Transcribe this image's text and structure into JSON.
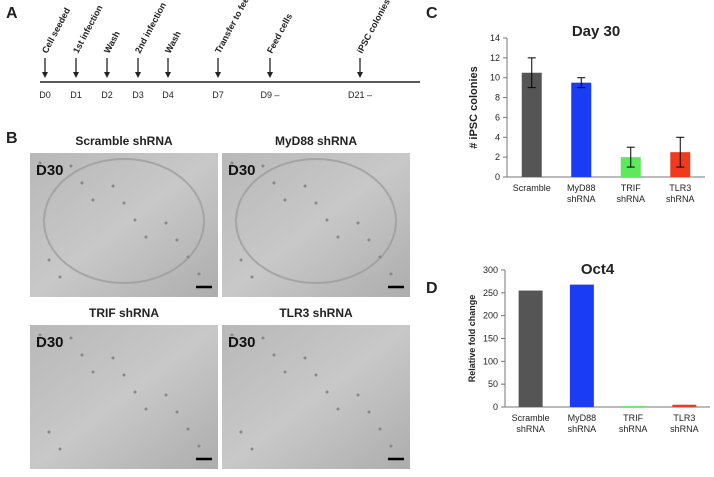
{
  "panels": {
    "a": "A",
    "b": "B",
    "c": "C",
    "d": "D"
  },
  "timeline": {
    "steps": [
      {
        "day": "D0",
        "event": "Cell seeded"
      },
      {
        "day": "D1",
        "event": "1st infection"
      },
      {
        "day": "D2",
        "event": "Wash"
      },
      {
        "day": "D3",
        "event": "2nd infection"
      },
      {
        "day": "D4",
        "event": "Wash"
      },
      {
        "day": "D7",
        "event": "Transfer to feeders"
      },
      {
        "day": "D9 –",
        "event": "Feed cells"
      },
      {
        "day": "D21 –",
        "event": "iPSC colonies"
      }
    ]
  },
  "images": [
    {
      "title": "Scramble shRNA",
      "label": "D30"
    },
    {
      "title": "MyD88 shRNA",
      "label": "D30"
    },
    {
      "title": "TRIF shRNA",
      "label": "D30"
    },
    {
      "title": "TLR3 shRNA",
      "label": "D30"
    }
  ],
  "chart_data": [
    {
      "type": "bar",
      "title": "Day 30",
      "y_label": "# iPSC colonies",
      "categories": [
        [
          "Scramble"
        ],
        [
          "MyD88",
          "shRNA"
        ],
        [
          "TRIF",
          "shRNA"
        ],
        [
          "TLR3",
          "shRNA"
        ]
      ],
      "values": [
        10.5,
        9.5,
        2,
        2.5
      ],
      "errors": [
        1.5,
        0.5,
        1,
        1.5
      ],
      "colors": [
        "#555555",
        "#1a3cf5",
        "#5de85d",
        "#f03a1e"
      ],
      "ylim": [
        0,
        14
      ],
      "yticks": [
        0,
        2,
        4,
        6,
        8,
        10,
        12,
        14
      ]
    },
    {
      "type": "bar",
      "title": "Oct4",
      "y_label": "Relative fold change",
      "categories": [
        [
          "Scramble",
          "shRNA"
        ],
        [
          "MyD88",
          "shRNA"
        ],
        [
          "TRIF",
          "shRNA"
        ],
        [
          "TLR3",
          "shRNA"
        ]
      ],
      "values": [
        255,
        268,
        2,
        5
      ],
      "colors": [
        "#555555",
        "#1a3cf5",
        "#5de85d",
        "#f03a1e"
      ],
      "ylim": [
        0,
        300
      ],
      "yticks": [
        0,
        50,
        100,
        150,
        200,
        250,
        300
      ]
    }
  ]
}
